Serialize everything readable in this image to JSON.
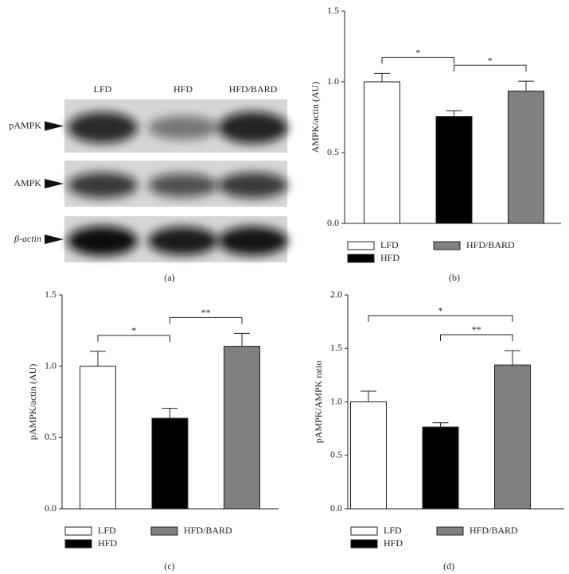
{
  "blot": {
    "lanes": [
      "LFD",
      "HFD",
      "HFD/BARD"
    ],
    "rows": [
      "pAMPK",
      "AMPK",
      "β-actin"
    ],
    "caption": "(a)"
  },
  "chart_data": [
    {
      "type": "bar",
      "ylabel": "AMPK/actin (AU)",
      "caption": "(b)",
      "categories": [
        "LFD",
        "HFD",
        "HFD/BARD"
      ],
      "values": [
        1.0,
        0.755,
        0.935
      ],
      "errors": [
        0.06,
        0.04,
        0.07
      ],
      "colors": [
        "#ffffff",
        "#000000",
        "#808080"
      ],
      "ylim": [
        0,
        1.5
      ],
      "yticks": [
        {
          "value": 0,
          "label": "0.0"
        },
        {
          "value": 0.5,
          "label": "0.5"
        },
        {
          "value": 1,
          "label": "1.0"
        },
        {
          "value": 1.5,
          "label": "1.5"
        }
      ],
      "significance": [
        {
          "groups": [
            "LFD",
            "HFD"
          ],
          "label": "*"
        },
        {
          "groups": [
            "HFD",
            "HFD/BARD"
          ],
          "label": "*"
        }
      ]
    },
    {
      "type": "bar",
      "ylabel": "pAMPK/actin (AU)",
      "caption": "(c)",
      "categories": [
        "LFD",
        "HFD",
        "HFD/BARD"
      ],
      "values": [
        1.0,
        0.635,
        1.14
      ],
      "errors": [
        0.105,
        0.07,
        0.09
      ],
      "colors": [
        "#ffffff",
        "#000000",
        "#808080"
      ],
      "ylim": [
        0,
        1.5
      ],
      "yticks": [
        {
          "value": 0,
          "label": "0.0"
        },
        {
          "value": 0.5,
          "label": "0.5"
        },
        {
          "value": 1,
          "label": "1.0"
        },
        {
          "value": 1.5,
          "label": "1.5"
        }
      ],
      "significance": [
        {
          "groups": [
            "LFD",
            "HFD"
          ],
          "label": "*"
        },
        {
          "groups": [
            "HFD",
            "HFD/BARD"
          ],
          "label": "**"
        }
      ]
    },
    {
      "type": "bar",
      "ylabel": "pAMPK/AMPK ratio",
      "caption": "(d)",
      "categories": [
        "LFD",
        "HFD",
        "HFD/BARD"
      ],
      "values": [
        1.0,
        0.765,
        1.345
      ],
      "errors": [
        0.1,
        0.04,
        0.135
      ],
      "colors": [
        "#ffffff",
        "#000000",
        "#808080"
      ],
      "ylim": [
        0,
        2
      ],
      "yticks": [
        {
          "value": 0,
          "label": "0.0"
        },
        {
          "value": 0.5,
          "label": "0.5"
        },
        {
          "value": 1,
          "label": "1.0"
        },
        {
          "value": 1.5,
          "label": "1.5"
        },
        {
          "value": 2,
          "label": "2.0"
        }
      ],
      "significance": [
        {
          "groups": [
            "HFD",
            "HFD/BARD"
          ],
          "label": "**"
        },
        {
          "groups": [
            "LFD",
            "HFD/BARD"
          ],
          "label": "*"
        }
      ]
    }
  ]
}
